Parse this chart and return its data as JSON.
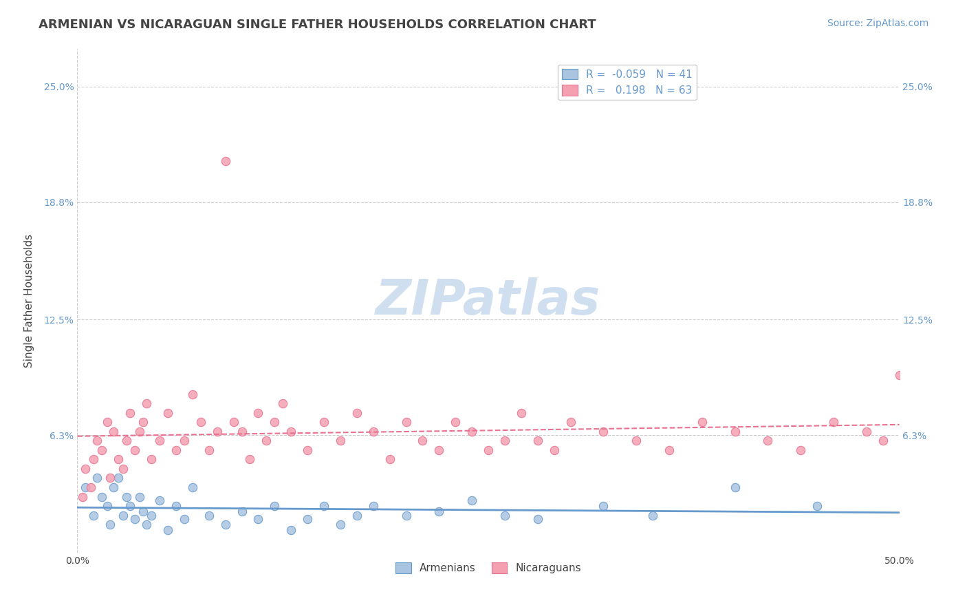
{
  "title": "ARMENIAN VS NICARAGUAN SINGLE FATHER HOUSEHOLDS CORRELATION CHART",
  "source": "Source: ZipAtlas.com",
  "xlabel": "",
  "ylabel": "Single Father Households",
  "xlim": [
    0.0,
    50.0
  ],
  "ylim": [
    0.0,
    27.0
  ],
  "yticks": [
    0.0,
    6.3,
    12.5,
    18.8,
    25.0
  ],
  "ytick_labels": [
    "",
    "6.3%",
    "12.5%",
    "18.8%",
    "25.0%"
  ],
  "xticks": [
    0.0,
    12.5,
    25.0,
    37.5,
    50.0
  ],
  "xtick_labels": [
    "0.0%",
    "",
    "",
    "",
    "50.0%"
  ],
  "armenian_R": -0.059,
  "armenian_N": 41,
  "nicaraguan_R": 0.198,
  "nicaraguan_N": 63,
  "armenian_color": "#a8c4e0",
  "nicaraguan_color": "#f4a0b0",
  "armenian_line_color": "#6699cc",
  "nicaraguan_line_color": "#e87090",
  "background_color": "#ffffff",
  "grid_color": "#cccccc",
  "title_color": "#444444",
  "axis_color": "#6699cc",
  "watermark_color": "#d0dff0",
  "armenian_x": [
    0.5,
    1.0,
    1.2,
    1.5,
    1.8,
    2.0,
    2.2,
    2.5,
    2.8,
    3.0,
    3.2,
    3.5,
    3.8,
    4.0,
    4.2,
    4.5,
    5.0,
    5.5,
    6.0,
    6.5,
    7.0,
    8.0,
    9.0,
    10.0,
    11.0,
    12.0,
    13.0,
    14.0,
    15.0,
    16.0,
    17.0,
    18.0,
    20.0,
    22.0,
    24.0,
    26.0,
    28.0,
    32.0,
    35.0,
    40.0,
    45.0
  ],
  "armenian_y": [
    3.5,
    2.0,
    4.0,
    3.0,
    2.5,
    1.5,
    3.5,
    4.0,
    2.0,
    3.0,
    2.5,
    1.8,
    3.0,
    2.2,
    1.5,
    2.0,
    2.8,
    1.2,
    2.5,
    1.8,
    3.5,
    2.0,
    1.5,
    2.2,
    1.8,
    2.5,
    1.2,
    1.8,
    2.5,
    1.5,
    2.0,
    2.5,
    2.0,
    2.2,
    2.8,
    2.0,
    1.8,
    2.5,
    2.0,
    3.5,
    2.5
  ],
  "nicaraguan_x": [
    0.3,
    0.5,
    0.8,
    1.0,
    1.2,
    1.5,
    1.8,
    2.0,
    2.2,
    2.5,
    2.8,
    3.0,
    3.2,
    3.5,
    3.8,
    4.0,
    4.2,
    4.5,
    5.0,
    5.5,
    6.0,
    6.5,
    7.0,
    7.5,
    8.0,
    8.5,
    9.0,
    9.5,
    10.0,
    10.5,
    11.0,
    11.5,
    12.0,
    12.5,
    13.0,
    14.0,
    15.0,
    16.0,
    17.0,
    18.0,
    19.0,
    20.0,
    21.0,
    22.0,
    23.0,
    24.0,
    25.0,
    26.0,
    27.0,
    28.0,
    29.0,
    30.0,
    32.0,
    34.0,
    36.0,
    38.0,
    40.0,
    42.0,
    44.0,
    46.0,
    48.0,
    49.0,
    50.0
  ],
  "nicaraguan_y": [
    3.0,
    4.5,
    3.5,
    5.0,
    6.0,
    5.5,
    7.0,
    4.0,
    6.5,
    5.0,
    4.5,
    6.0,
    7.5,
    5.5,
    6.5,
    7.0,
    8.0,
    5.0,
    6.0,
    7.5,
    5.5,
    6.0,
    8.5,
    7.0,
    5.5,
    6.5,
    21.0,
    7.0,
    6.5,
    5.0,
    7.5,
    6.0,
    7.0,
    8.0,
    6.5,
    5.5,
    7.0,
    6.0,
    7.5,
    6.5,
    5.0,
    7.0,
    6.0,
    5.5,
    7.0,
    6.5,
    5.5,
    6.0,
    7.5,
    6.0,
    5.5,
    7.0,
    6.5,
    6.0,
    5.5,
    7.0,
    6.5,
    6.0,
    5.5,
    7.0,
    6.5,
    6.0,
    9.5
  ]
}
